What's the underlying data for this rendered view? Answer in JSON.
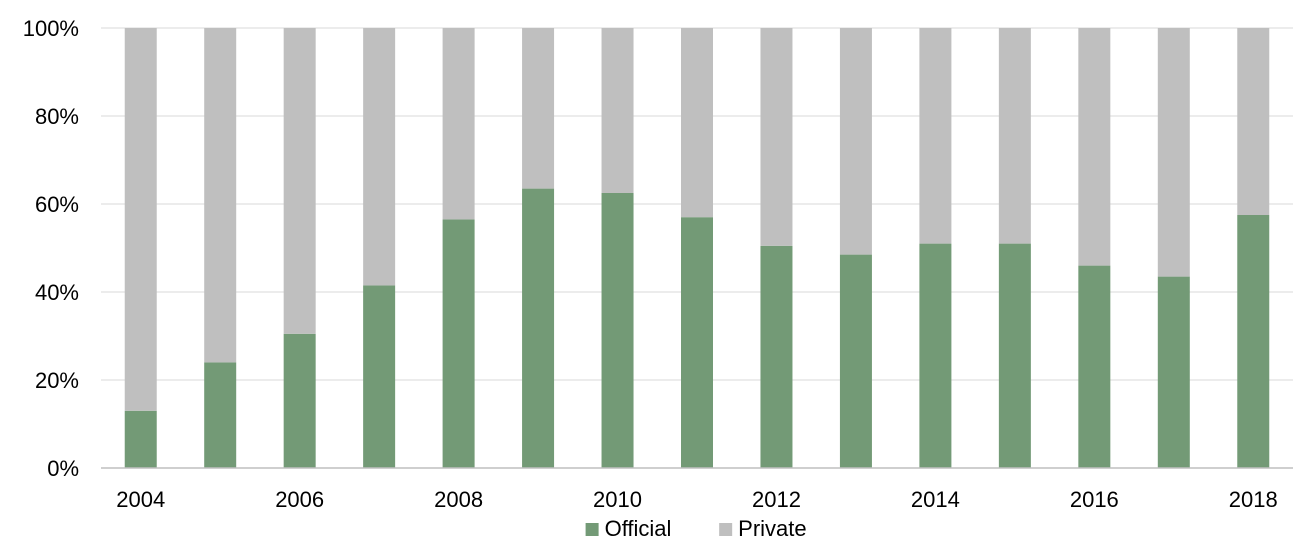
{
  "chart_data": {
    "type": "bar",
    "stacked": true,
    "stack_mode": "percent",
    "categories": [
      "2004",
      "2005",
      "2006",
      "2007",
      "2008",
      "2009",
      "2010",
      "2011",
      "2012",
      "2013",
      "2014",
      "2015",
      "2016",
      "2017",
      "2018"
    ],
    "x_tick_labels": [
      "2004",
      "",
      "2006",
      "",
      "2008",
      "",
      "2010",
      "",
      "2012",
      "",
      "2014",
      "",
      "2016",
      "",
      "2018"
    ],
    "series": [
      {
        "name": "Official",
        "color": "#739a76",
        "values": [
          13,
          24,
          30.5,
          41.5,
          56.5,
          63.5,
          62.5,
          57,
          50.5,
          48.5,
          51,
          51,
          46,
          43.5,
          57.5
        ]
      },
      {
        "name": "Private",
        "color": "#bfbfbf",
        "values": [
          87,
          76,
          69.5,
          58.5,
          43.5,
          36.5,
          37.5,
          43,
          49.5,
          51.5,
          49,
          49,
          54,
          56.5,
          42.5
        ]
      }
    ],
    "ylim": [
      0,
      100
    ],
    "y_ticks": [
      0,
      20,
      40,
      60,
      80,
      100
    ],
    "y_tick_labels": [
      "0%",
      "20%",
      "40%",
      "60%",
      "80%",
      "100%"
    ],
    "gridlines": true,
    "gridline_color": "#d9d9d9",
    "axis_color": "#bfbfbf",
    "title": "",
    "xlabel": "",
    "ylabel": "",
    "legend": {
      "position": "bottom",
      "entries": [
        "Official",
        "Private"
      ]
    }
  }
}
